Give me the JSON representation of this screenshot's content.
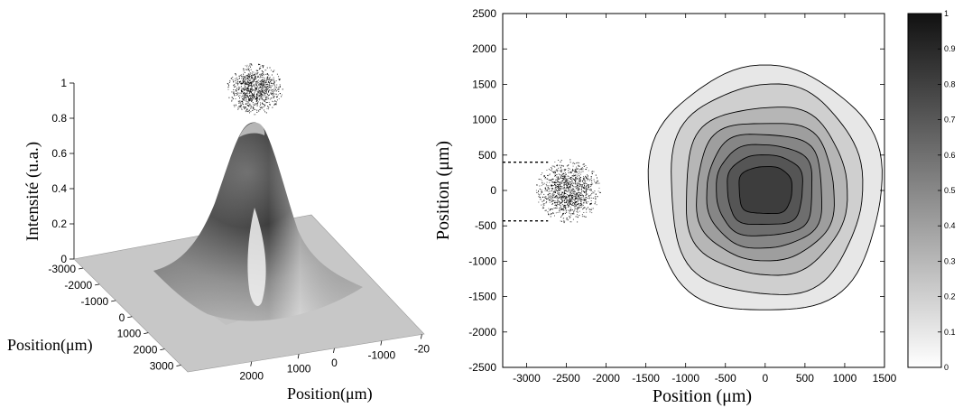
{
  "chart_data": [
    {
      "type": "surface",
      "zlabel": "Intensité (u.a.)",
      "xlabel": "Position(μm)",
      "ylabel": "Position(μm)",
      "z_ticks": [
        "0",
        "0.2",
        "0.4",
        "0.6",
        "0.8",
        "1"
      ],
      "left_axis_ticks": [
        "-3000",
        "-2000",
        "-1000",
        "0",
        "1000",
        "2000",
        "3000"
      ],
      "front_axis_ticks": [
        "2000",
        "1000",
        "0",
        "-1000",
        "-20"
      ],
      "zlim": [
        0,
        1
      ],
      "peak": {
        "x": 0,
        "y": 0,
        "z": 0.93
      },
      "colormap": "gray"
    },
    {
      "type": "contour",
      "xlabel": "Position (μm)",
      "ylabel": "Position (μm)",
      "xlim": [
        -3300,
        1500
      ],
      "ylim": [
        -2500,
        2500
      ],
      "x_ticks": [
        "-3000",
        "-2500",
        "-2000",
        "-1500",
        "-1000",
        "-500",
        "0",
        "500",
        "1000",
        "1500"
      ],
      "y_ticks": [
        "2500",
        "2000",
        "1500",
        "1000",
        "500",
        "0",
        "-500",
        "-1000",
        "-1500",
        "-2000",
        "-2500"
      ],
      "center": {
        "x": 0,
        "y": 0
      },
      "levels": [
        {
          "level": 0.1,
          "rx": 1460,
          "ry": 1730
        },
        {
          "level": 0.2,
          "rx": 1200,
          "ry": 1480
        },
        {
          "level": 0.3,
          "rx": 1010,
          "ry": 1180
        },
        {
          "level": 0.4,
          "rx": 860,
          "ry": 970
        },
        {
          "level": 0.5,
          "rx": 720,
          "ry": 800
        },
        {
          "level": 0.6,
          "rx": 600,
          "ry": 640
        },
        {
          "level": 0.7,
          "rx": 470,
          "ry": 490
        },
        {
          "level": 0.8,
          "rx": 330,
          "ry": 330
        }
      ],
      "speckle_inset": {
        "center_x": -2480,
        "center_y": 0,
        "guides_y": [
          400,
          -430
        ]
      },
      "colorbar": {
        "min": 0,
        "max": 1,
        "ticks": [
          "0",
          "0.1",
          "0.2",
          "0.3",
          "0.4",
          "0.5",
          "0.6",
          "0.7",
          "0.8",
          "0.9",
          "1"
        ]
      }
    }
  ]
}
